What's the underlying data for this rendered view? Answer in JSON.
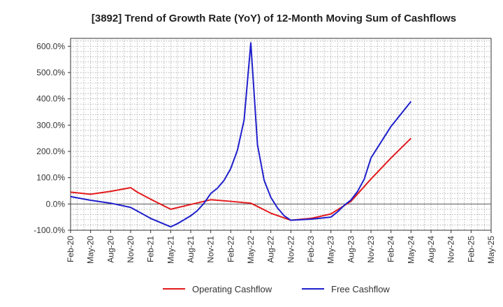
{
  "chart_data": {
    "type": "line",
    "title": "[3892]  Trend of Growth Rate (YoY) of 12-Month Moving Sum of Cashflows",
    "xlabel": "",
    "ylabel": "",
    "ylim": [
      -100,
      630
    ],
    "y_ticks": [
      -100,
      0,
      100,
      200,
      300,
      400,
      500,
      600
    ],
    "y_tick_labels": [
      "-100.0%",
      "0.0%",
      "100.0%",
      "200.0%",
      "300.0%",
      "400.0%",
      "500.0%",
      "600.0%"
    ],
    "x_tick_labels": [
      "Feb-20",
      "May-20",
      "Aug-20",
      "Nov-20",
      "Feb-21",
      "May-21",
      "Aug-21",
      "Nov-21",
      "Feb-22",
      "May-22",
      "Aug-22",
      "Nov-22",
      "Feb-23",
      "May-23",
      "Aug-23",
      "Nov-23",
      "Feb-24",
      "May-24",
      "Aug-24",
      "Nov-24",
      "Feb-25",
      "May-25"
    ],
    "x_note": "x values are month indices counted from Feb-20 (0) to May-25 (63)",
    "grid": true,
    "legend_position": "bottom",
    "series": [
      {
        "name": "Operating Cashflow",
        "color": "#e31a1c",
        "x": [
          0,
          3,
          6,
          9,
          10,
          12,
          15,
          18,
          21,
          24,
          27,
          30,
          33,
          36,
          39,
          42,
          45,
          48,
          51
        ],
        "values": [
          45,
          37,
          48,
          62,
          45,
          18,
          -20,
          -2,
          16,
          10,
          3,
          -35,
          -62,
          -55,
          -38,
          10,
          95,
          175,
          250
        ]
      },
      {
        "name": "Free Cashflow",
        "color": "#1f1fcc",
        "x": [
          0,
          3,
          6,
          9,
          12,
          15,
          16,
          18,
          19,
          20,
          21,
          22,
          23,
          24,
          25,
          26,
          27,
          28,
          29,
          30,
          31,
          32,
          33,
          36,
          39,
          40,
          41,
          42,
          43,
          44,
          45,
          46,
          48,
          51
        ],
        "values": [
          28,
          14,
          3,
          -13,
          -55,
          -87,
          -75,
          -45,
          -25,
          3,
          40,
          60,
          90,
          135,
          205,
          320,
          613,
          225,
          90,
          25,
          -15,
          -45,
          -62,
          -58,
          -50,
          -30,
          -5,
          15,
          48,
          95,
          175,
          215,
          295,
          390
        ]
      }
    ]
  }
}
